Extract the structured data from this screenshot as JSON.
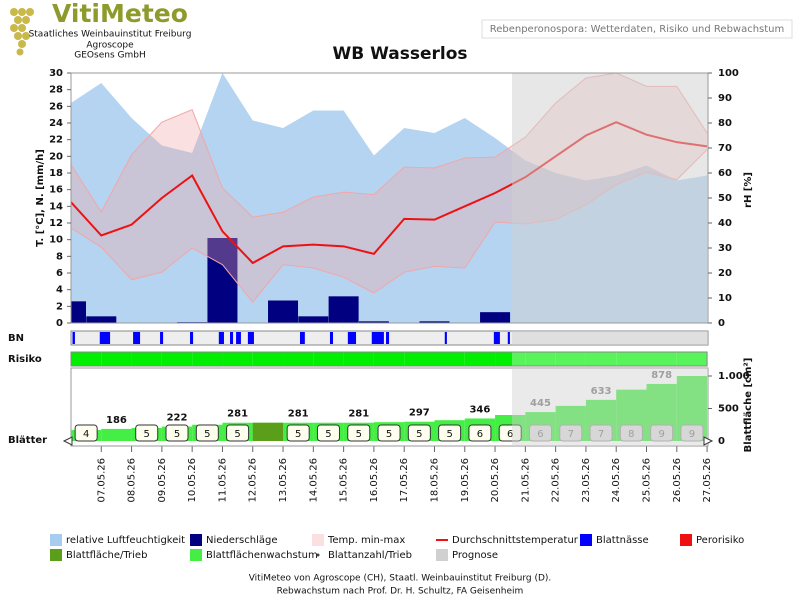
{
  "header": {
    "logo_title": "VitiMeteo",
    "logo_lines": [
      "Staatliches Weinbauinstitut Freiburg",
      "Agroscope",
      "GEOsens GmbH"
    ],
    "subtitle": "Rebenperonospora: Wetterdaten, Risiko und Rebwachstum"
  },
  "chart_data": [
    {
      "type": "combo",
      "title": "WB Wasserlos",
      "categories": [
        null,
        "07.05.26",
        "08.05.26",
        "09.05.26",
        "10.05.26",
        "11.05.26",
        "12.05.26",
        "13.05.26",
        "14.05.26",
        "15.05.26",
        "16.05.26",
        "17.05.26",
        "18.05.26",
        "19.05.26",
        "20.05.26",
        "21.05.26",
        "22.05.26",
        "23.05.26",
        "24.05.26",
        "25.05.26",
        "26.05.26",
        "27.05.26"
      ],
      "ylabel": "T. [°C], N. [mm/h]",
      "y2label": "rH [%]",
      "ylim": [
        0,
        30
      ],
      "yticks": [
        0,
        2,
        4,
        6,
        8,
        10,
        12,
        14,
        16,
        18,
        20,
        22,
        24,
        26,
        28,
        30
      ],
      "y2lim": [
        0,
        100
      ],
      "y2ticks": [
        0,
        10,
        20,
        30,
        40,
        50,
        60,
        70,
        80,
        90,
        100
      ],
      "series": [
        {
          "name": "relative Luftfeuchtigkeit",
          "kind": "area",
          "axis": "y2",
          "color": "#a8ccef",
          "values": [
            88,
            96,
            82,
            71,
            68,
            100,
            81,
            78,
            85,
            85,
            67,
            78,
            76,
            82,
            74,
            65,
            60,
            57,
            59,
            63,
            57,
            59
          ]
        },
        {
          "name": "Niederschläge",
          "kind": "bar",
          "color": "#000080",
          "values": [
            2.6,
            0.8,
            0,
            0,
            0.1,
            10.2,
            0,
            2.7,
            0.8,
            3.2,
            0.2,
            0,
            0.2,
            0,
            1.3,
            null,
            null,
            null,
            null,
            null,
            null,
            null
          ]
        },
        {
          "name": "Temp. min-max",
          "kind": "band",
          "color": "#f2a6a6",
          "high": [
            19,
            13.3,
            20.2,
            24.1,
            25.6,
            16.2,
            12.7,
            13.3,
            15.1,
            15.7,
            15.4,
            18.7,
            18.6,
            19.8,
            19.9,
            22.3,
            26.4,
            29.4,
            30,
            28.4,
            28.4,
            22.8
          ],
          "low": [
            11.4,
            9.1,
            5.2,
            6.1,
            9,
            7,
            2.5,
            7,
            6.6,
            5.5,
            3.6,
            6.1,
            6.8,
            6.6,
            12.1,
            11.9,
            12.4,
            14.2,
            16.6,
            18.1,
            17.2,
            20.8
          ]
        },
        {
          "name": "Durchschnittstemperatur",
          "kind": "line",
          "color": "#ee1111",
          "values": [
            14.5,
            10.5,
            11.8,
            15,
            17.7,
            11,
            7.2,
            9.2,
            9.4,
            9.2,
            8.3,
            12.5,
            12.4,
            14,
            15.6,
            17.5,
            20,
            22.5,
            24.1,
            22.6,
            21.7,
            21.2
          ]
        }
      ],
      "forecast": {
        "name": "Prognose",
        "color": "#d0d0d0"
      }
    },
    {
      "type": "wetness",
      "label": "BN",
      "series": [
        {
          "name": "Blattnässe",
          "color": "#0000ff",
          "intervals": [
            [
              0.05,
              0.13
            ],
            [
              0.95,
              1.29
            ],
            [
              2.05,
              2.28
            ],
            [
              2.94,
              3.04
            ],
            [
              3.93,
              4.03
            ],
            [
              4.88,
              5.05
            ],
            [
              5.25,
              5.35
            ],
            [
              5.45,
              5.61
            ],
            [
              5.84,
              6.04
            ],
            [
              7.56,
              7.72
            ],
            [
              8.55,
              8.65
            ],
            [
              9.14,
              9.41
            ],
            [
              9.93,
              10.33
            ],
            [
              10.4,
              10.5
            ],
            [
              12.34,
              12.41
            ],
            [
              13.96,
              14.16
            ],
            [
              14.42,
              14.49
            ]
          ]
        }
      ]
    },
    {
      "type": "risk",
      "label": "Risiko",
      "low_color": "#00ee00",
      "series": [
        {
          "name": "Perorisiko",
          "color": "#ee1111",
          "values": [
            0,
            0,
            0,
            0,
            0,
            0,
            0,
            0,
            0,
            0,
            0,
            0,
            0,
            0,
            0,
            0,
            0,
            0,
            0,
            0,
            0
          ]
        }
      ]
    },
    {
      "type": "leaf",
      "label": "Blätter",
      "ylabel": "Blattfläche [cm²]",
      "ylim": [
        0,
        1000
      ],
      "yticks": [
        0,
        500,
        {
          "value": 1000,
          "label": "1.000"
        }
      ],
      "series": [
        {
          "name": "Blattflächenwachstum",
          "kind": "step",
          "color": "#44ee44",
          "values": [
            170,
            186,
            200,
            222,
            250,
            281,
            281,
            281,
            281,
            281,
            290,
            297,
            320,
            346,
            400,
            445,
            540,
            633,
            790,
            878,
            1000
          ],
          "value_labels": [
            null,
            "186",
            null,
            "222",
            null,
            "281",
            null,
            "281",
            null,
            "281",
            null,
            "297",
            null,
            "346",
            null,
            "445",
            null,
            "633",
            null,
            "878",
            null
          ]
        },
        {
          "name": "Blattfläche/Trieb",
          "kind": "block",
          "color": "#5a9e1a",
          "values": [
            null,
            null,
            null,
            null,
            null,
            null,
            281,
            null,
            null,
            null,
            null,
            null,
            null,
            null,
            null,
            null,
            null,
            null,
            null,
            null,
            null
          ]
        },
        {
          "name": "Blattanzahl/Trieb",
          "kind": "count",
          "color": "#444444",
          "values": [
            4,
            null,
            5,
            5,
            5,
            5,
            null,
            5,
            5,
            5,
            5,
            5,
            5,
            6,
            6,
            6,
            7,
            7,
            8,
            9,
            9
          ]
        }
      ]
    }
  ],
  "footer": [
    "VitiMeteo von Agroscope (CH), Staatl. Weinbauinstitut Freiburg (D).",
    "Rebwachstum nach Prof. Dr. H. Schultz, FA Geisenheim"
  ]
}
